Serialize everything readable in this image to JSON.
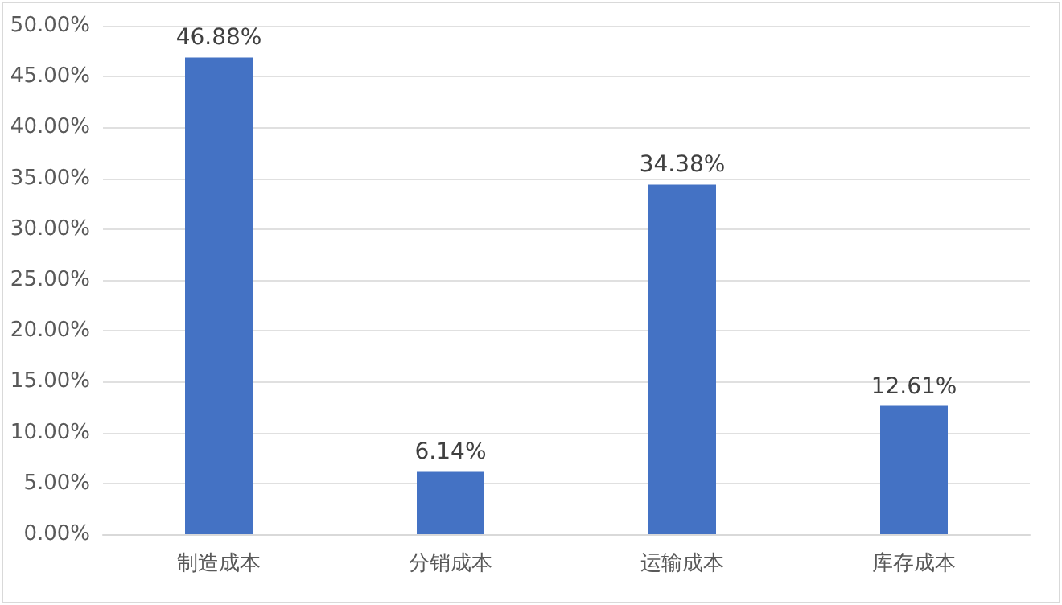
{
  "chart_data": {
    "type": "bar",
    "categories": [
      "制造成本",
      "分销成本",
      "运输成本",
      "库存成本"
    ],
    "values": [
      46.88,
      6.14,
      34.38,
      12.61
    ],
    "value_labels": [
      "46.88%",
      "6.14%",
      "34.38%",
      "12.61%"
    ],
    "color": "#4472c4",
    "ylim": [
      0,
      50
    ],
    "yticks": [
      {
        "value": 0,
        "label": "0.00%"
      },
      {
        "value": 5,
        "label": "5.00%"
      },
      {
        "value": 10,
        "label": "10.00%"
      },
      {
        "value": 15,
        "label": "15.00%"
      },
      {
        "value": 20,
        "label": "20.00%"
      },
      {
        "value": 25,
        "label": "25.00%"
      },
      {
        "value": 30,
        "label": "30.00%"
      },
      {
        "value": 35,
        "label": "35.00%"
      },
      {
        "value": 40,
        "label": "40.00%"
      },
      {
        "value": 45,
        "label": "45.00%"
      },
      {
        "value": 50,
        "label": "50.00%"
      }
    ],
    "grid": "y"
  }
}
